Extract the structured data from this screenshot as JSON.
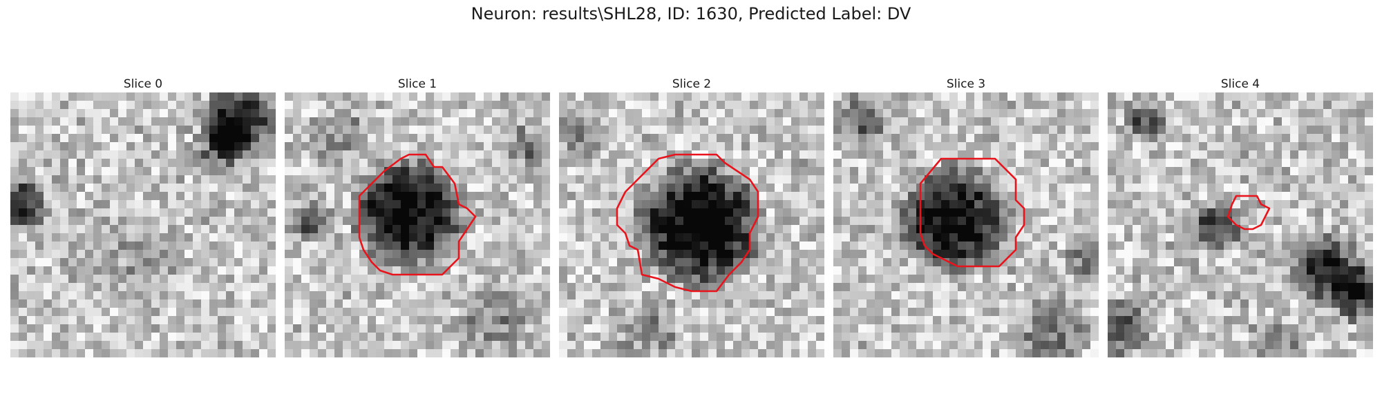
{
  "figure": {
    "title": "Neuron: results\\SHL28, ID: 1630, Predicted Label: DV"
  },
  "contour_color": "#e8131b",
  "slices": [
    {
      "title": "Slice 0",
      "has_contour": false
    },
    {
      "title": "Slice 1",
      "has_contour": true
    },
    {
      "title": "Slice 2",
      "has_contour": true
    },
    {
      "title": "Slice 3",
      "has_contour": true
    },
    {
      "title": "Slice 4",
      "has_contour": true
    }
  ]
}
